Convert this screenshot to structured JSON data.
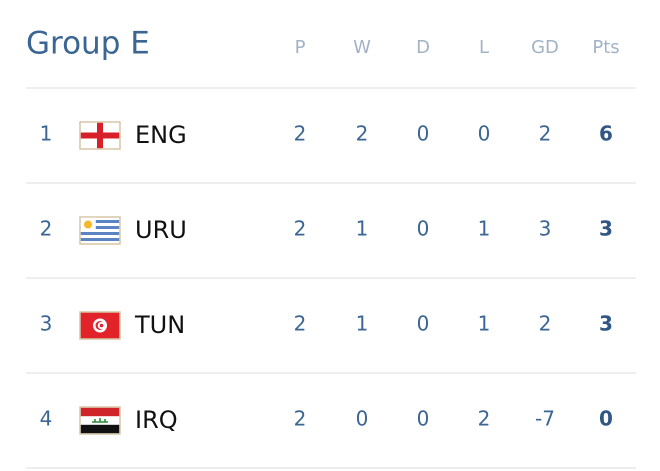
{
  "header": {
    "title": "Group E",
    "columns": [
      "P",
      "W",
      "D",
      "L",
      "GD",
      "Pts"
    ]
  },
  "table": {
    "rows": [
      {
        "rank": 1,
        "team": "ENG",
        "stats": [
          2,
          2,
          0,
          0,
          2,
          6
        ]
      },
      {
        "rank": 2,
        "team": "URU",
        "stats": [
          2,
          1,
          0,
          1,
          3,
          3
        ]
      },
      {
        "rank": 3,
        "team": "TUN",
        "stats": [
          2,
          1,
          0,
          1,
          2,
          3
        ]
      },
      {
        "rank": 4,
        "team": "IRQ",
        "stats": [
          2,
          0,
          0,
          2,
          -7,
          0
        ]
      }
    ]
  }
}
